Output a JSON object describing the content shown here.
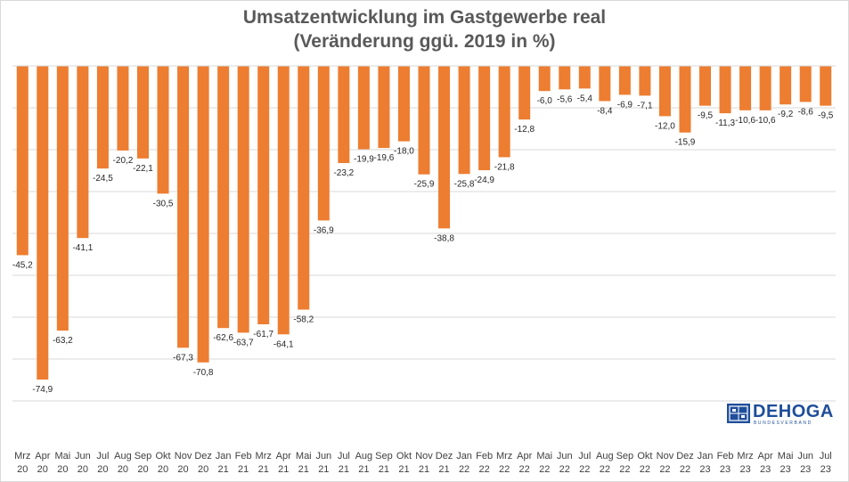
{
  "title_lines": [
    "Umsatzentwicklung im Gastgewerbe real",
    "(Veränderung ggü. 2019 in %)"
  ],
  "logo": {
    "name": "DEHOGA",
    "sub": "BUNDESVERBAND",
    "color": "#1f4e9a"
  },
  "chart_data": {
    "type": "bar",
    "title": "Umsatzentwicklung im Gastgewerbe real (Veränderung ggü. 2019 in %)",
    "bar_color": "#ed7d31",
    "grid": true,
    "ylim": [
      -80,
      0
    ],
    "categories": [
      [
        "Mrz",
        "20"
      ],
      [
        "Apr",
        "20"
      ],
      [
        "Mai",
        "20"
      ],
      [
        "Jun",
        "20"
      ],
      [
        "Jul",
        "20"
      ],
      [
        "Aug",
        "20"
      ],
      [
        "Sep",
        "20"
      ],
      [
        "Okt",
        "20"
      ],
      [
        "Nov",
        "20"
      ],
      [
        "Dez",
        "20"
      ],
      [
        "Jan",
        "21"
      ],
      [
        "Feb",
        "21"
      ],
      [
        "Mrz",
        "21"
      ],
      [
        "Apr",
        "21"
      ],
      [
        "Mai",
        "21"
      ],
      [
        "Jun",
        "21"
      ],
      [
        "Jul",
        "21"
      ],
      [
        "Aug",
        "21"
      ],
      [
        "Sep",
        "21"
      ],
      [
        "Okt",
        "21"
      ],
      [
        "Nov",
        "21"
      ],
      [
        "Dez",
        "21"
      ],
      [
        "Jan",
        "22"
      ],
      [
        "Feb",
        "22"
      ],
      [
        "Mrz",
        "22"
      ],
      [
        "Apr",
        "22"
      ],
      [
        "Mai",
        "22"
      ],
      [
        "Jun",
        "22"
      ],
      [
        "Jul",
        "22"
      ],
      [
        "Aug",
        "22"
      ],
      [
        "Sep",
        "22"
      ],
      [
        "Okt",
        "22"
      ],
      [
        "Nov",
        "22"
      ],
      [
        "Dez",
        "22"
      ],
      [
        "Jan",
        "23"
      ],
      [
        "Feb",
        "23"
      ],
      [
        "Mrz",
        "23"
      ],
      [
        "Apr",
        "23"
      ],
      [
        "Mai",
        "23"
      ],
      [
        "Jun",
        "23"
      ],
      [
        "Jul",
        "23"
      ]
    ],
    "values": [
      -45.2,
      -74.9,
      -63.2,
      -41.1,
      -24.5,
      -20.2,
      -22.1,
      -30.5,
      -67.3,
      -70.8,
      -62.6,
      -63.7,
      -61.7,
      -64.1,
      -58.2,
      -36.9,
      -23.2,
      -19.9,
      -19.6,
      -18.0,
      -25.9,
      -38.8,
      -25.8,
      -24.9,
      -21.8,
      -12.8,
      -6.0,
      -5.6,
      -5.4,
      -8.4,
      -6.9,
      -7.1,
      -12.0,
      -15.9,
      -9.5,
      -11.3,
      -10.6,
      -10.6,
      -9.2,
      -8.6,
      -9.5
    ],
    "labels": [
      "-45,2",
      "-74,9",
      "-63,2",
      "-41,1",
      "-24,5",
      "-20,2",
      "-22,1",
      "-30,5",
      "-67,3",
      "-70,8",
      "-62,6",
      "-63,7",
      "-61,7",
      "-64,1",
      "-58,2",
      "-36,9",
      "-23,2",
      "-19,9",
      "-19,6",
      "-18,0",
      "-25,9",
      "-38,8",
      "-25,8",
      "-24,9",
      "-21,8",
      "-12,8",
      "-6,0",
      "-5,6",
      "-5,4",
      "-8,4",
      "-6,9",
      "-7,1",
      "-12,0",
      "-15,9",
      "-9,5",
      "-11,3",
      "-10,6",
      "-10,6",
      "-9,2",
      "-8,6",
      "-9,5"
    ]
  }
}
